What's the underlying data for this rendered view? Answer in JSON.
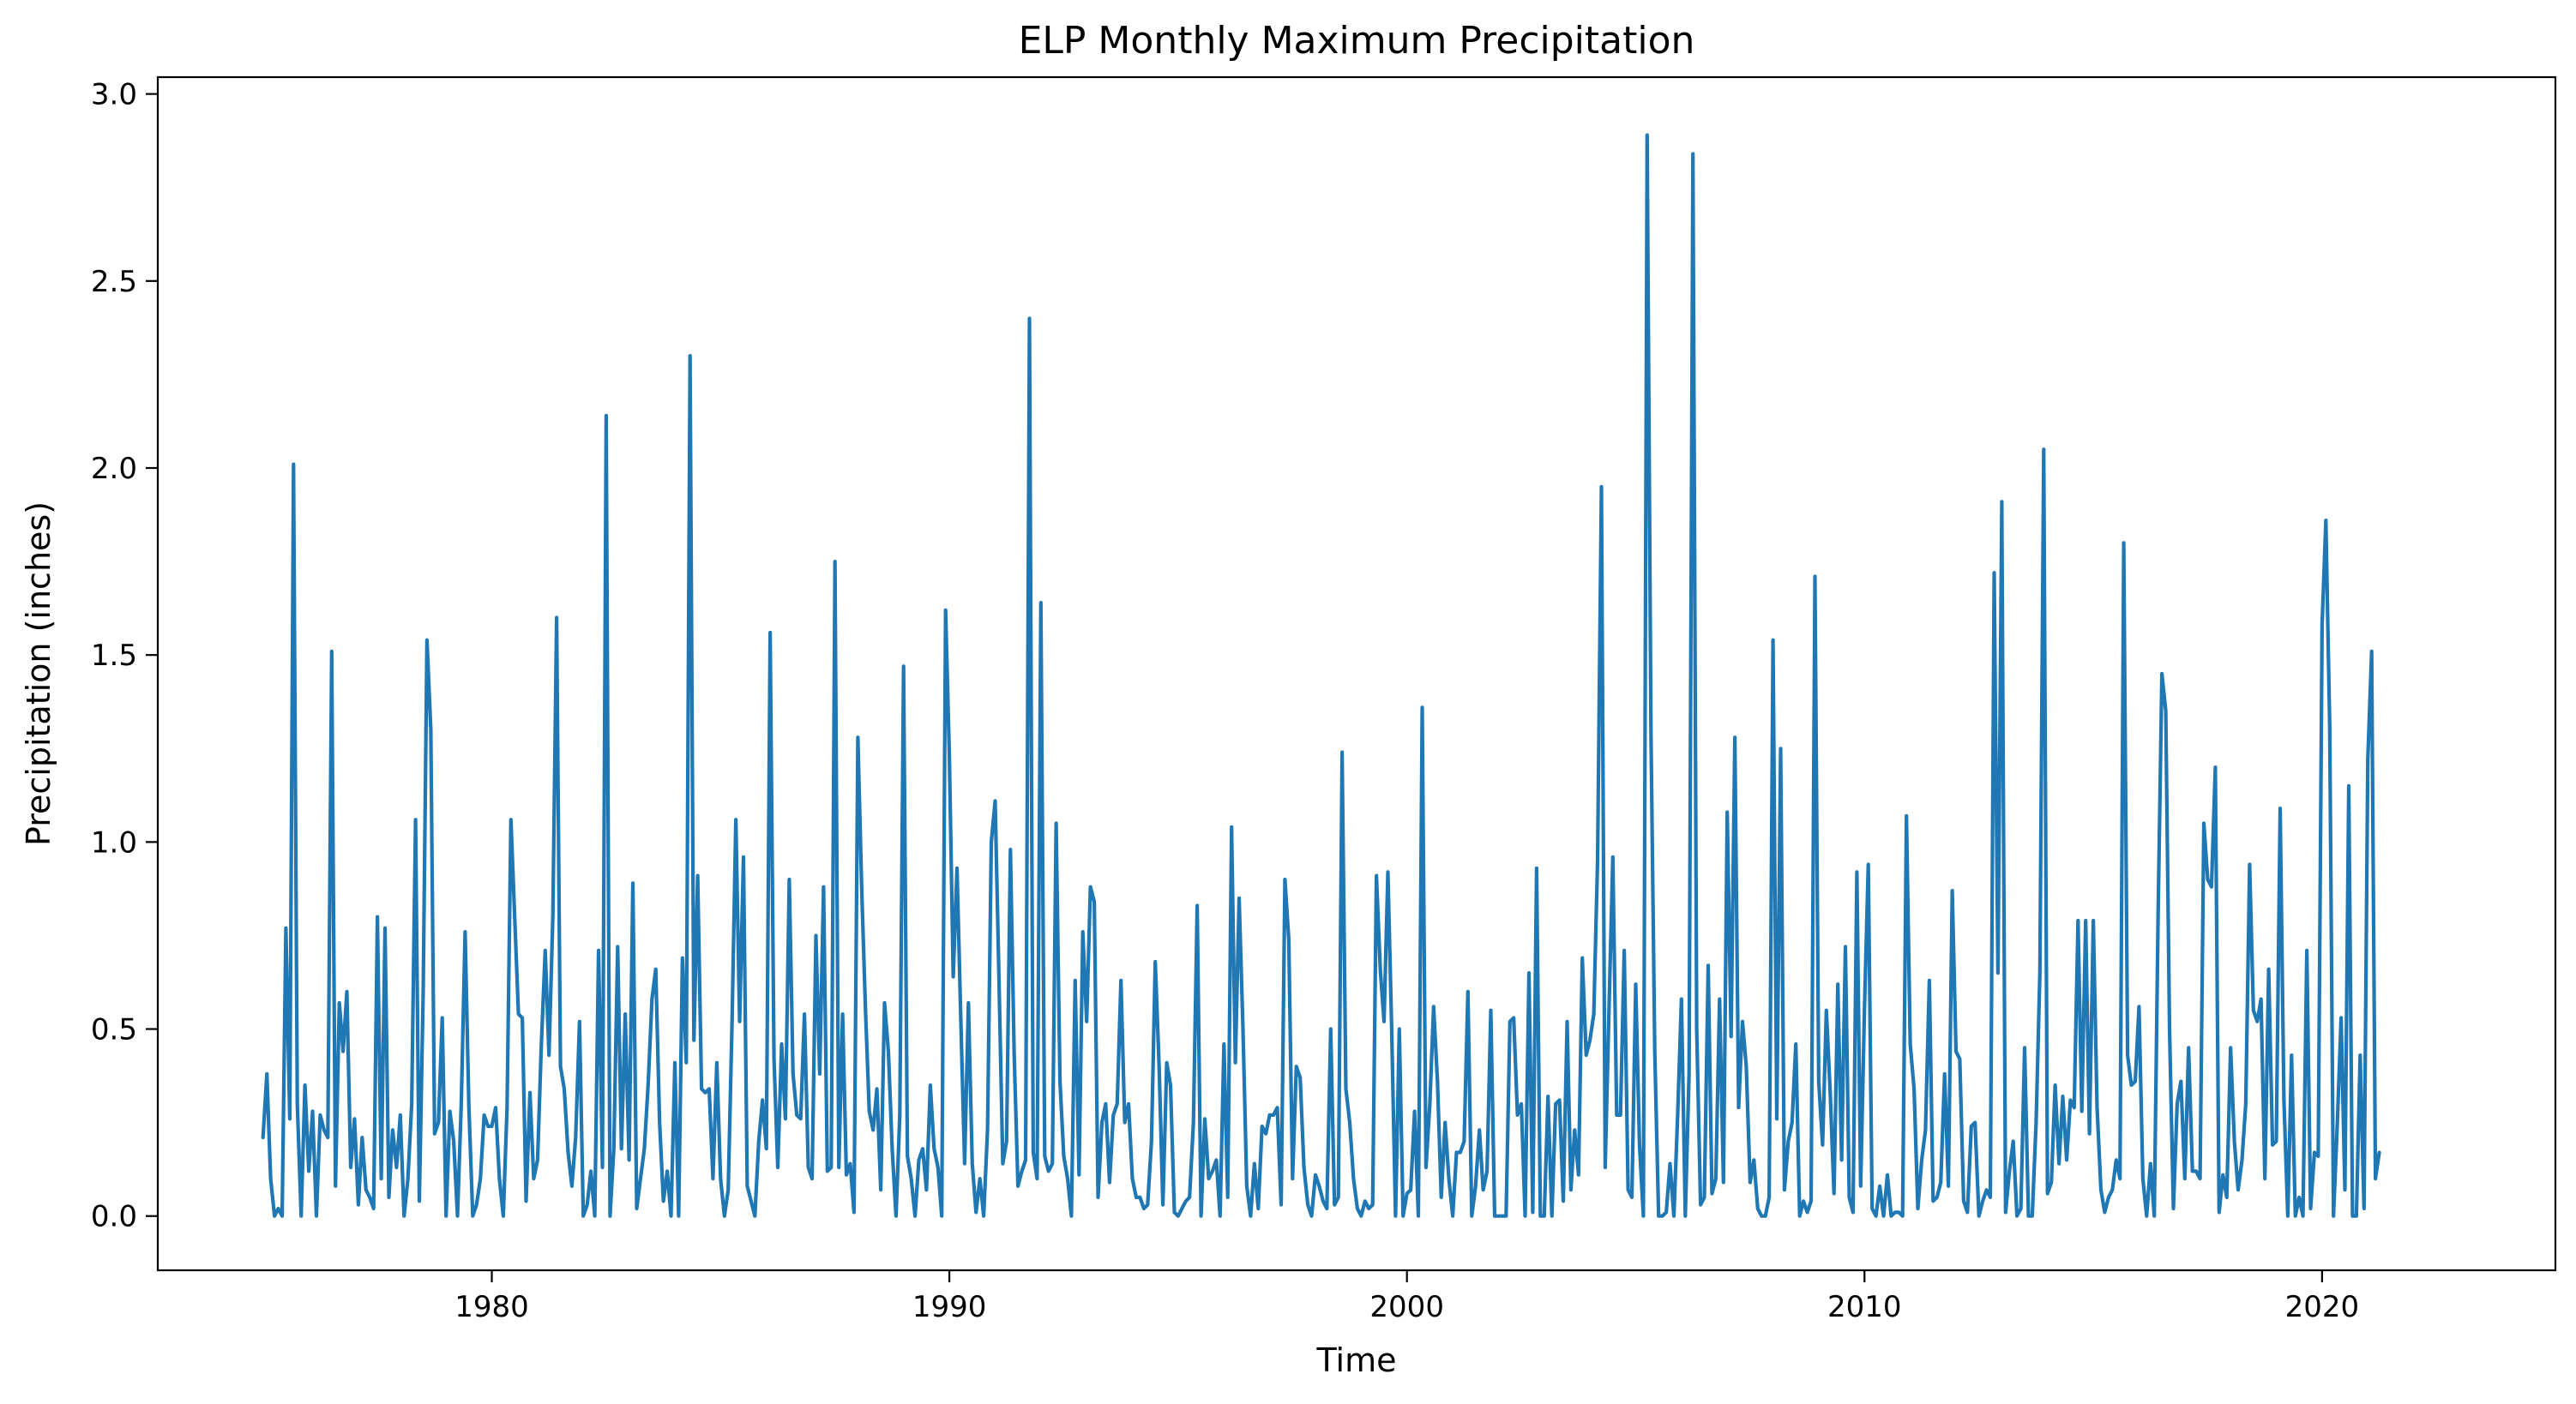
{
  "chart_data": {
    "type": "line",
    "title": "ELP Monthly Maximum Precipitation",
    "xlabel": "Time",
    "ylabel": "Precipitation (inches)",
    "xlim": [
      1972.7,
      2025.1
    ],
    "ylim": [
      -0.145,
      3.045
    ],
    "xticks": [
      1980,
      1990,
      2000,
      2010,
      2020
    ],
    "xtick_labels": [
      "1980",
      "1990",
      "2000",
      "2010",
      "2020"
    ],
    "yticks": [
      0.0,
      0.5,
      1.0,
      1.5,
      2.0,
      2.5,
      3.0
    ],
    "ytick_labels": [
      "0.0",
      "0.5",
      "1.0",
      "1.5",
      "2.0",
      "2.5",
      "3.0"
    ],
    "grid": false,
    "legend": "none",
    "line_color": "#1f77b4",
    "series": [
      {
        "start_year": 1975,
        "step": "monthly",
        "values": [
          0.21,
          0.38,
          0.1,
          0.0,
          0.02,
          0.0,
          0.77,
          0.26,
          2.01,
          0.3,
          0.0,
          0.35,
          0.12,
          0.28,
          0.0,
          0.27,
          0.23,
          0.21,
          1.51,
          0.08,
          0.57,
          0.44,
          0.6,
          0.13,
          0.26,
          0.03,
          0.21,
          0.07,
          0.05,
          0.02,
          0.8,
          0.1,
          0.77,
          0.05,
          0.23,
          0.13,
          0.27,
          0.0,
          0.1,
          0.3,
          1.06,
          0.04,
          0.6,
          1.54,
          1.3,
          0.22,
          0.25,
          0.53,
          0.0,
          0.28,
          0.2,
          0.0,
          0.3,
          0.76,
          0.29,
          0.0,
          0.03,
          0.1,
          0.27,
          0.24,
          0.24,
          0.29,
          0.1,
          0.0,
          0.29,
          1.06,
          0.8,
          0.54,
          0.53,
          0.04,
          0.33,
          0.1,
          0.15,
          0.46,
          0.71,
          0.43,
          0.8,
          1.6,
          0.4,
          0.34,
          0.17,
          0.08,
          0.21,
          0.52,
          0.0,
          0.03,
          0.12,
          0.0,
          0.71,
          0.13,
          2.14,
          0.0,
          0.18,
          0.72,
          0.18,
          0.54,
          0.15,
          0.89,
          0.02,
          0.1,
          0.18,
          0.35,
          0.58,
          0.66,
          0.25,
          0.04,
          0.12,
          0.0,
          0.41,
          0.0,
          0.69,
          0.41,
          2.3,
          0.47,
          0.91,
          0.34,
          0.33,
          0.34,
          0.1,
          0.41,
          0.1,
          0.0,
          0.07,
          0.52,
          1.06,
          0.52,
          0.96,
          0.08,
          0.04,
          0.0,
          0.2,
          0.31,
          0.18,
          1.56,
          0.42,
          0.13,
          0.46,
          0.26,
          0.9,
          0.38,
          0.27,
          0.26,
          0.54,
          0.13,
          0.1,
          0.75,
          0.38,
          0.88,
          0.12,
          0.13,
          1.75,
          0.13,
          0.54,
          0.11,
          0.14,
          0.01,
          1.28,
          0.88,
          0.55,
          0.28,
          0.23,
          0.34,
          0.07,
          0.57,
          0.44,
          0.18,
          0.0,
          0.27,
          1.47,
          0.16,
          0.1,
          0.0,
          0.15,
          0.18,
          0.07,
          0.35,
          0.18,
          0.13,
          0.0,
          1.62,
          1.23,
          0.64,
          0.93,
          0.53,
          0.14,
          0.57,
          0.14,
          0.01,
          0.1,
          0.0,
          0.23,
          1.0,
          1.11,
          0.64,
          0.14,
          0.2,
          0.98,
          0.43,
          0.08,
          0.12,
          0.15,
          2.4,
          0.17,
          0.1,
          1.64,
          0.16,
          0.12,
          0.14,
          1.05,
          0.36,
          0.16,
          0.1,
          0.0,
          0.63,
          0.11,
          0.76,
          0.52,
          0.88,
          0.84,
          0.05,
          0.25,
          0.3,
          0.09,
          0.27,
          0.3,
          0.63,
          0.25,
          0.3,
          0.1,
          0.05,
          0.05,
          0.02,
          0.03,
          0.2,
          0.68,
          0.4,
          0.03,
          0.41,
          0.35,
          0.01,
          0.0,
          0.02,
          0.04,
          0.05,
          0.25,
          0.83,
          0.0,
          0.26,
          0.1,
          0.12,
          0.15,
          0.0,
          0.46,
          0.05,
          1.04,
          0.41,
          0.85,
          0.5,
          0.08,
          0.0,
          0.14,
          0.02,
          0.24,
          0.22,
          0.27,
          0.27,
          0.29,
          0.03,
          0.9,
          0.74,
          0.1,
          0.4,
          0.37,
          0.13,
          0.03,
          0.0,
          0.11,
          0.08,
          0.04,
          0.02,
          0.5,
          0.03,
          0.05,
          1.24,
          0.34,
          0.25,
          0.1,
          0.02,
          0.0,
          0.04,
          0.02,
          0.03,
          0.91,
          0.66,
          0.52,
          0.92,
          0.5,
          0.0,
          0.5,
          0.0,
          0.06,
          0.07,
          0.28,
          0.0,
          1.36,
          0.13,
          0.3,
          0.56,
          0.36,
          0.05,
          0.25,
          0.1,
          0.0,
          0.17,
          0.17,
          0.2,
          0.6,
          0.0,
          0.08,
          0.23,
          0.07,
          0.12,
          0.55,
          0.0,
          0.0,
          0.0,
          0.0,
          0.52,
          0.53,
          0.27,
          0.3,
          0.0,
          0.65,
          0.01,
          0.93,
          0.0,
          0.0,
          0.32,
          0.0,
          0.3,
          0.31,
          0.04,
          0.52,
          0.07,
          0.23,
          0.11,
          0.69,
          0.43,
          0.47,
          0.54,
          0.95,
          1.95,
          0.13,
          0.56,
          0.96,
          0.27,
          0.27,
          0.71,
          0.07,
          0.05,
          0.62,
          0.19,
          0.0,
          2.89,
          1.29,
          0.44,
          0.0,
          0.0,
          0.01,
          0.14,
          0.0,
          0.27,
          0.58,
          0.0,
          0.38,
          2.84,
          0.5,
          0.03,
          0.05,
          0.67,
          0.06,
          0.1,
          0.58,
          0.09,
          1.08,
          0.48,
          1.28,
          0.29,
          0.52,
          0.4,
          0.09,
          0.15,
          0.02,
          0.0,
          0.0,
          0.05,
          1.54,
          0.26,
          1.25,
          0.07,
          0.2,
          0.25,
          0.46,
          0.0,
          0.04,
          0.01,
          0.04,
          1.71,
          0.36,
          0.19,
          0.55,
          0.33,
          0.06,
          0.62,
          0.15,
          0.72,
          0.05,
          0.01,
          0.92,
          0.08,
          0.56,
          0.94,
          0.02,
          0.0,
          0.08,
          0.0,
          0.11,
          0.0,
          0.01,
          0.01,
          0.0,
          1.07,
          0.46,
          0.34,
          0.02,
          0.15,
          0.23,
          0.63,
          0.04,
          0.05,
          0.09,
          0.38,
          0.08,
          0.87,
          0.44,
          0.42,
          0.04,
          0.01,
          0.24,
          0.25,
          0.0,
          0.04,
          0.07,
          0.05,
          1.72,
          0.65,
          1.91,
          0.01,
          0.12,
          0.2,
          0.0,
          0.02,
          0.45,
          0.0,
          0.0,
          0.25,
          0.65,
          2.05,
          0.06,
          0.09,
          0.35,
          0.14,
          0.32,
          0.15,
          0.31,
          0.29,
          0.79,
          0.28,
          0.79,
          0.22,
          0.79,
          0.29,
          0.07,
          0.01,
          0.05,
          0.07,
          0.15,
          0.1,
          1.8,
          0.43,
          0.35,
          0.36,
          0.56,
          0.1,
          0.0,
          0.14,
          0.0,
          0.81,
          1.45,
          1.35,
          0.5,
          0.02,
          0.3,
          0.36,
          0.1,
          0.45,
          0.12,
          0.12,
          0.1,
          1.05,
          0.9,
          0.88,
          1.2,
          0.01,
          0.11,
          0.05,
          0.45,
          0.2,
          0.07,
          0.15,
          0.3,
          0.94,
          0.55,
          0.52,
          0.58,
          0.1,
          0.66,
          0.19,
          0.2,
          1.09,
          0.31,
          0.0,
          0.43,
          0.0,
          0.05,
          0.0,
          0.71,
          0.02,
          0.17,
          0.16,
          1.58,
          1.86,
          1.31,
          0.0,
          0.25,
          0.53,
          0.07,
          1.15,
          0.0,
          0.0,
          0.43,
          0.02,
          1.22,
          1.51,
          0.1,
          0.17
        ]
      }
    ]
  }
}
